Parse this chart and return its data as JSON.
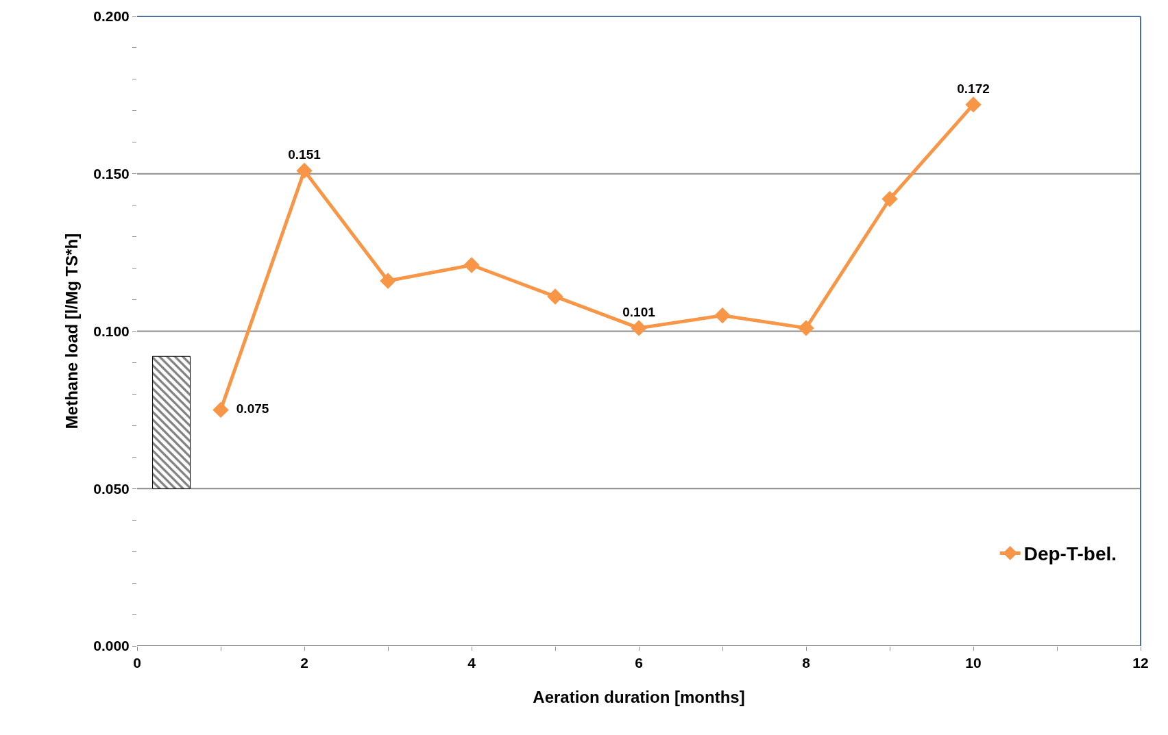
{
  "chart_data": {
    "type": "line",
    "xlabel": "Aeration duration [months]",
    "ylabel": "Methane load [l/Mg TS*h]",
    "xlim": [
      0,
      12
    ],
    "ylim": [
      0,
      0.2
    ],
    "xticks": [
      0,
      {
        "value": 1,
        "label": null
      },
      2,
      {
        "value": 3,
        "label": null
      },
      4,
      {
        "value": 5,
        "label": null
      },
      6,
      {
        "value": 7,
        "label": null
      },
      8,
      {
        "value": 9,
        "label": null
      },
      10,
      {
        "value": 11,
        "label": null
      },
      12
    ],
    "yticks": [
      {
        "value": 0,
        "label": "0.000"
      },
      {
        "value": 0.01,
        "label": null
      },
      {
        "value": 0.02,
        "label": null
      },
      {
        "value": 0.03,
        "label": null
      },
      {
        "value": 0.04,
        "label": null
      },
      {
        "value": 0.05,
        "label": "0.050"
      },
      {
        "value": 0.06,
        "label": null
      },
      {
        "value": 0.07,
        "label": null
      },
      {
        "value": 0.08,
        "label": null
      },
      {
        "value": 0.09,
        "label": null
      },
      {
        "value": 0.1,
        "label": "0.100"
      },
      {
        "value": 0.11,
        "label": null
      },
      {
        "value": 0.12,
        "label": null
      },
      {
        "value": 0.13,
        "label": null
      },
      {
        "value": 0.14,
        "label": null
      },
      {
        "value": 0.15,
        "label": "0.150"
      },
      {
        "value": 0.16,
        "label": null
      },
      {
        "value": 0.17,
        "label": null
      },
      {
        "value": 0.18,
        "label": null
      },
      {
        "value": 0.19,
        "label": null
      },
      {
        "value": 0.2,
        "label": "0.200"
      }
    ],
    "grid": "y",
    "legend": "bottom right",
    "marker": "diamond",
    "line_style": "solid",
    "series": [
      {
        "type": "bar",
        "color": "#000000",
        "x": [
          0.41
        ],
        "base": [
          0.05
        ],
        "values": [
          0.042
        ]
      },
      {
        "name": "Dep-T-bel.",
        "color": "#f79646",
        "x": [
          1,
          2,
          3,
          4,
          5,
          6,
          7,
          8,
          9,
          10
        ],
        "values": [
          0.075,
          0.151,
          0.116,
          0.121,
          0.111,
          0.101,
          0.105,
          0.101,
          0.142,
          0.172
        ],
        "value_labels": [
          "0.075",
          "0.151",
          null,
          null,
          null,
          "0.101",
          null,
          null,
          null,
          "0.172"
        ]
      }
    ]
  }
}
